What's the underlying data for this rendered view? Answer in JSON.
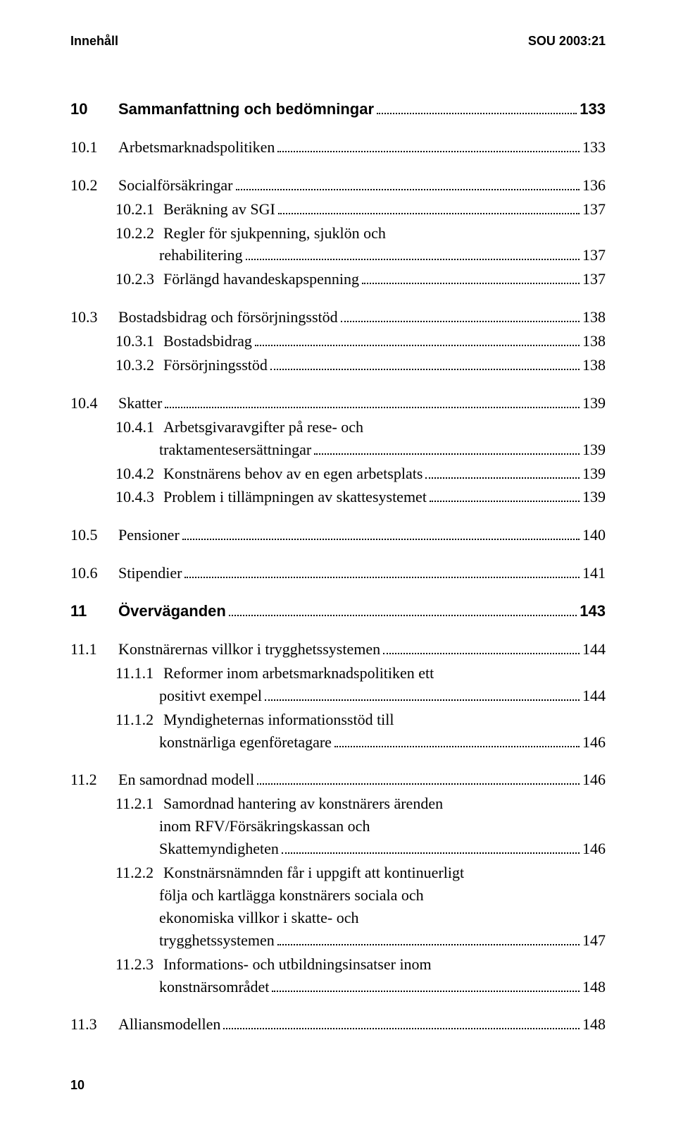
{
  "header": {
    "left": "Innehåll",
    "right": "SOU 2003:21"
  },
  "footer": {
    "page_number": "10"
  },
  "entries": [
    {
      "num": "10",
      "title": "Sammanfattning och bedömningar",
      "page": "133",
      "bold": true,
      "gap": "none"
    },
    {
      "num": "10.1",
      "title": "Arbetsmarknadspolitiken",
      "page": "133",
      "gap": "lg"
    },
    {
      "num": "10.2",
      "title": "Socialförsäkringar",
      "page": "136",
      "gap": "lg"
    },
    {
      "num": "10.2.1",
      "title": "Beräkning av SGI",
      "page": "137",
      "indent": 3,
      "gap": "sm"
    },
    {
      "num": "10.2.2",
      "title_lines": [
        "Regler för sjukpenning, sjuklön och",
        "rehabilitering"
      ],
      "page": "137",
      "indent": 3,
      "gap": "sm"
    },
    {
      "num": "10.2.3",
      "title": "Förlängd havandeskapspenning",
      "page": "137",
      "indent": 3,
      "gap": "sm"
    },
    {
      "num": "10.3",
      "title": "Bostadsbidrag och försörjningsstöd",
      "page": "138",
      "gap": "lg"
    },
    {
      "num": "10.3.1",
      "title": "Bostadsbidrag",
      "page": "138",
      "indent": 3,
      "gap": "sm"
    },
    {
      "num": "10.3.2",
      "title": "Försörjningsstöd",
      "page": "138",
      "indent": 3,
      "gap": "sm"
    },
    {
      "num": "10.4",
      "title": "Skatter",
      "page": "139",
      "gap": "lg"
    },
    {
      "num": "10.4.1",
      "title_lines": [
        "Arbetsgivaravgifter på rese- och",
        "traktamentesersättningar"
      ],
      "page": "139",
      "indent": 3,
      "gap": "sm"
    },
    {
      "num": "10.4.2",
      "title": "Konstnärens behov av en egen arbetsplats",
      "page": "139",
      "indent": 3,
      "gap": "sm"
    },
    {
      "num": "10.4.3",
      "title": "Problem i tillämpningen av skattesystemet",
      "page": "139",
      "indent": 3,
      "gap": "sm"
    },
    {
      "num": "10.5",
      "title": "Pensioner",
      "page": "140",
      "gap": "lg"
    },
    {
      "num": "10.6",
      "title": "Stipendier",
      "page": "141",
      "gap": "lg"
    },
    {
      "num": "11",
      "title": "Överväganden",
      "page": "143",
      "bold": true,
      "gap": "lg"
    },
    {
      "num": "11.1",
      "title": "Konstnärernas villkor i trygghetssystemen",
      "page": "144",
      "gap": "lg"
    },
    {
      "num": "11.1.1",
      "title_lines": [
        "Reformer inom arbetsmarknadspolitiken ett",
        "positivt exempel"
      ],
      "page": "144",
      "indent": 3,
      "gap": "sm"
    },
    {
      "num": "11.1.2",
      "title_lines": [
        "Myndigheternas informationsstöd till",
        "konstnärliga egenföretagare"
      ],
      "page": "146",
      "indent": 3,
      "gap": "sm"
    },
    {
      "num": "11.2",
      "title": "En samordnad modell",
      "page": "146",
      "gap": "lg"
    },
    {
      "num": "11.2.1",
      "title_lines": [
        "Samordnad hantering av konstnärers ärenden",
        "inom RFV/Försäkringskassan och",
        "Skattemyndigheten"
      ],
      "page": "146",
      "indent": 3,
      "gap": "sm"
    },
    {
      "num": "11.2.2",
      "title_lines": [
        "Konstnärsnämnden får i uppgift att kontinuerligt",
        "följa och kartlägga konstnärers sociala och",
        "ekonomiska villkor i skatte- och",
        "trygghetssystemen"
      ],
      "page": "147",
      "indent": 3,
      "gap": "sm"
    },
    {
      "num": "11.2.3",
      "title_lines": [
        "Informations- och utbildningsinsatser inom",
        "konstnärsområdet"
      ],
      "page": "148",
      "indent": 3,
      "gap": "sm"
    },
    {
      "num": "11.3",
      "title": "Alliansmodellen",
      "page": "148",
      "gap": "lg"
    }
  ]
}
